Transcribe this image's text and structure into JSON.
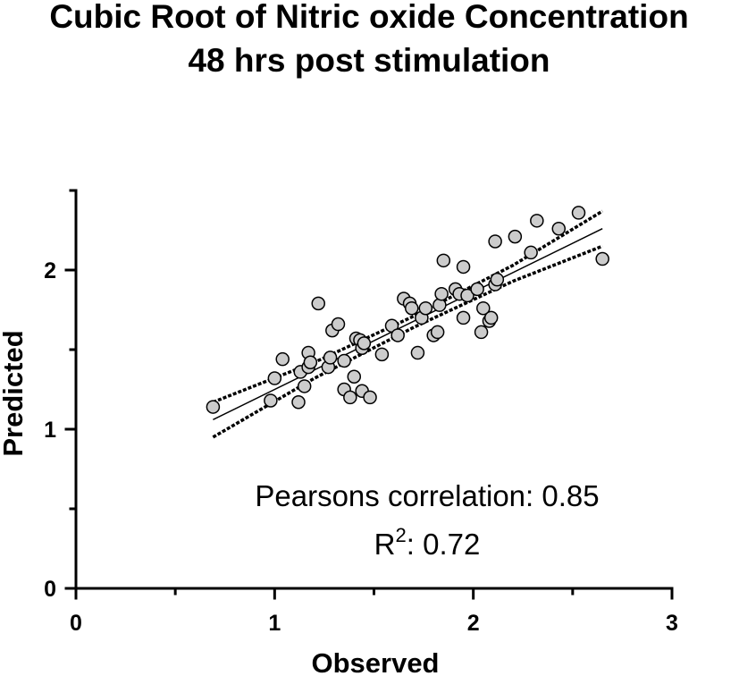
{
  "chart_data": {
    "type": "scatter",
    "title": [
      "Cubic Root of Nitric oxide Concentration",
      "48 hrs post stimulation"
    ],
    "x_label": "Observed",
    "y_label": "Predicted",
    "xlim": [
      0,
      3
    ],
    "ylim": [
      0,
      2.5
    ],
    "xticks": [
      0,
      1,
      2,
      3
    ],
    "yticks": [
      0,
      1,
      2
    ],
    "minor_xticks": [
      0.5,
      1.5,
      2.5
    ],
    "minor_yticks": [
      0.5,
      1.5,
      2.5
    ],
    "color": "#cccccc",
    "x": [
      0.69,
      0.98,
      1.0,
      1.04,
      1.12,
      1.13,
      1.15,
      1.17,
      1.17,
      1.18,
      1.22,
      1.27,
      1.28,
      1.29,
      1.32,
      1.35,
      1.35,
      1.38,
      1.4,
      1.41,
      1.43,
      1.44,
      1.44,
      1.45,
      1.48,
      1.54,
      1.59,
      1.62,
      1.65,
      1.68,
      1.69,
      1.72,
      1.74,
      1.76,
      1.8,
      1.82,
      1.83,
      1.84,
      1.85,
      1.91,
      1.93,
      1.95,
      1.95,
      1.97,
      2.02,
      2.04,
      2.05,
      2.08,
      2.09,
      2.11,
      2.12,
      2.11,
      2.21,
      2.29,
      2.32,
      2.43,
      2.53,
      2.65
    ],
    "values": [
      1.14,
      1.18,
      1.32,
      1.44,
      1.17,
      1.36,
      1.27,
      1.39,
      1.48,
      1.42,
      1.79,
      1.39,
      1.45,
      1.62,
      1.66,
      1.25,
      1.43,
      1.2,
      1.33,
      1.57,
      1.56,
      1.24,
      1.51,
      1.54,
      1.2,
      1.47,
      1.65,
      1.59,
      1.82,
      1.79,
      1.76,
      1.48,
      1.7,
      1.76,
      1.59,
      1.61,
      1.78,
      1.85,
      2.06,
      1.88,
      1.85,
      2.02,
      1.7,
      1.84,
      1.88,
      1.61,
      1.76,
      1.68,
      1.7,
      1.91,
      1.94,
      2.18,
      2.21,
      2.11,
      2.31,
      2.26,
      2.36,
      2.07
    ],
    "fit_lines": [
      {
        "style": "solid",
        "x": [
          0.69,
          2.65
        ],
        "values": [
          1.06,
          2.26
        ]
      },
      {
        "style": "dashed",
        "x": [
          0.69,
          1.2,
          1.7,
          2.2,
          2.65
        ],
        "values": [
          1.17,
          1.42,
          1.71,
          2.03,
          2.37
        ]
      },
      {
        "style": "dashed",
        "x": [
          0.69,
          1.2,
          1.7,
          2.2,
          2.65
        ],
        "values": [
          0.95,
          1.32,
          1.64,
          1.93,
          2.15
        ]
      }
    ],
    "annotation": "Pearsons correlation: 0.85",
    "r2_label": {
      "base": "R",
      "sup": "2",
      "rest": ": 0.72"
    }
  }
}
